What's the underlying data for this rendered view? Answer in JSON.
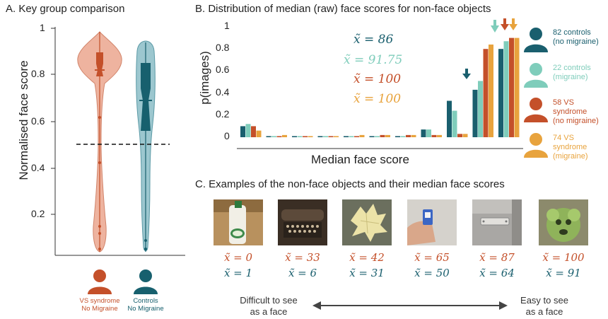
{
  "panel_a": {
    "title": "A. Key group comparison",
    "ylabel": "Normalised face score",
    "yticks": [
      "1",
      "0.8",
      "0.6",
      "0.4",
      "0.2"
    ],
    "groups": [
      {
        "name_line1": "VS syndrome",
        "name_line2": "No Migraine",
        "color": "#c4502a"
      },
      {
        "name_line1": "Controls",
        "name_line2": "No Migraine",
        "color": "#17606e"
      }
    ]
  },
  "panel_b": {
    "title": "B. Distribution of median (raw) face scores for non-face objects",
    "ylabel": "p(images)",
    "xlabel": "Median face score",
    "yticks": [
      "1",
      "0.8",
      "0.6",
      "0.4",
      "0.2",
      "0"
    ],
    "medians": [
      {
        "text": "x̃ = 86",
        "color": "#1a5f6e"
      },
      {
        "text": "x̃ = 91.75",
        "color": "#7fcdbb"
      },
      {
        "text": "x̃ = 100",
        "color": "#c4502a"
      },
      {
        "text": "x̃ = 100",
        "color": "#e8a33d"
      }
    ],
    "legend": [
      {
        "line1": "82 controls",
        "line2": "(no migraine)",
        "color": "#1a5f6e"
      },
      {
        "line1": "22 controls",
        "line2": "(migraine)",
        "color": "#7fcdbb"
      },
      {
        "line1": "58 VS syndrome",
        "line2": "(no migraine)",
        "color": "#c4502a"
      },
      {
        "line1": "74 VS syndrome",
        "line2": "(migraine)",
        "color": "#e8a33d"
      }
    ]
  },
  "chart_data": [
    {
      "type": "violin",
      "title": "A. Key group comparison",
      "ylabel": "Normalised face score",
      "ylim": [
        0,
        1
      ],
      "series": [
        {
          "name": "VS syndrome No Migraine",
          "median": 0.83,
          "q1": 0.78,
          "q3": 0.88,
          "min": 0.05,
          "max": 0.98
        },
        {
          "name": "Controls No Migraine",
          "median": 0.67,
          "q1": 0.56,
          "q3": 0.85,
          "min": 0.04,
          "max": 0.94
        }
      ],
      "reference_line": 0.5
    },
    {
      "type": "bar",
      "title": "B. Distribution of median (raw) face scores for non-face objects",
      "xlabel": "Median face score",
      "ylabel": "p(images)",
      "ylim": [
        0,
        1
      ],
      "categories": [
        "1",
        "2",
        "3",
        "4",
        "5",
        "6",
        "7",
        "8",
        "9",
        "10",
        "11"
      ],
      "series": [
        {
          "name": "82 controls (no migraine)",
          "color": "#1a5f6e",
          "values": [
            0.1,
            0.01,
            0.01,
            0.01,
            0.01,
            0.01,
            0.01,
            0.07,
            0.33,
            0.43,
            0.8
          ]
        },
        {
          "name": "22 controls (migraine)",
          "color": "#7fcdbb",
          "values": [
            0.12,
            0.01,
            0.01,
            0.01,
            0.01,
            0.01,
            0.01,
            0.07,
            0.24,
            0.51,
            0.87
          ]
        },
        {
          "name": "58 VS syndrome (no migraine)",
          "color": "#c4502a",
          "values": [
            0.1,
            0.01,
            0.01,
            0.01,
            0.01,
            0.02,
            0.02,
            0.02,
            0.03,
            0.8,
            0.9
          ]
        },
        {
          "name": "74 VS syndrome (migraine)",
          "color": "#e8a33d",
          "values": [
            0.06,
            0.02,
            0.01,
            0.01,
            0.02,
            0.02,
            0.02,
            0.02,
            0.03,
            0.84,
            0.9
          ]
        }
      ],
      "median_markers": [
        {
          "series": "82 controls (no migraine)",
          "category": "9"
        },
        {
          "series": "22 controls (migraine)",
          "category": "10"
        },
        {
          "series": "58 VS syndrome (no migraine)",
          "category": "11"
        },
        {
          "series": "74 VS syndrome (migraine)",
          "category": "11"
        }
      ]
    }
  ],
  "panel_c": {
    "title": "C. Examples of the non-face objects and their median face scores",
    "examples": [
      {
        "object": "milk jug",
        "vs": "x̃ = 0",
        "controls": "x̃ = 1"
      },
      {
        "object": "typewriter",
        "vs": "x̃ = 33",
        "controls": "x̃ = 6"
      },
      {
        "object": "leaf",
        "vs": "x̃ = 42",
        "controls": "x̃ = 31"
      },
      {
        "object": "hand with card",
        "vs": "x̃ = 65",
        "controls": "x̃ = 50"
      },
      {
        "object": "wall plate",
        "vs": "x̃ = 87",
        "controls": "x̃ = 64"
      },
      {
        "object": "green vegetable",
        "vs": "x̃ = 100",
        "controls": "x̃ = 91"
      }
    ],
    "vs_color": "#c4502a",
    "controls_color": "#1a5f6e",
    "scale_left_1": "Difficult to see",
    "scale_left_2": "as a face",
    "scale_right_1": "Easy to see",
    "scale_right_2": "as a face"
  }
}
